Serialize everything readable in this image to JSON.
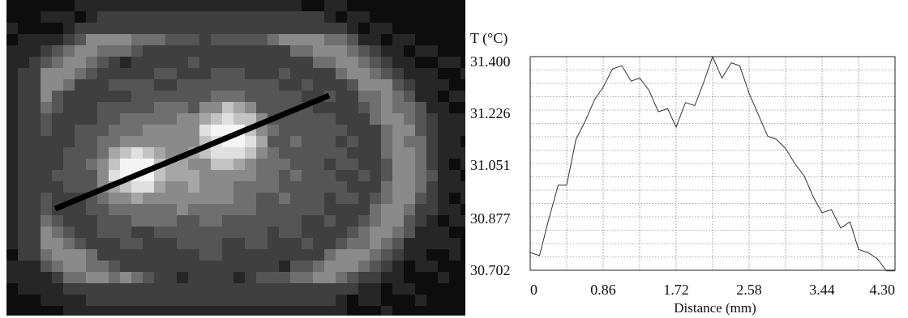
{
  "chart_data": [
    {
      "type": "heatmap",
      "description_colors": {
        "levels": [
          "#0d0d0d",
          "#262626",
          "#3f3f3f",
          "#555555",
          "#6f6f6f",
          "#8a8a8a",
          "#a6a6a6",
          "#c3c3c3",
          "#e0e0e0",
          "#f5f5f5"
        ]
      },
      "profile_line_color": "#000000"
    },
    {
      "type": "line",
      "xlabel": "Distance (mm)",
      "ylabel": "T (°C)",
      "x_ticks": [
        "0",
        "0.86",
        "1.72",
        "2.58",
        "3.44",
        "4.30"
      ],
      "y_ticks": [
        "31.400",
        "31.226",
        "31.051",
        "30.877",
        "30.702"
      ],
      "xlim": [
        0,
        4.3
      ],
      "ylim": [
        30.702,
        31.4
      ],
      "grid": true,
      "series": [
        {
          "x": [
            0.0,
            0.11,
            0.22,
            0.33,
            0.43,
            0.54,
            0.65,
            0.76,
            0.86,
            0.97,
            1.08,
            1.19,
            1.29,
            1.4,
            1.51,
            1.62,
            1.72,
            1.83,
            1.94,
            2.05,
            2.15,
            2.26,
            2.37,
            2.47,
            2.58,
            2.69,
            2.8,
            2.9,
            3.01,
            3.12,
            3.23,
            3.34,
            3.44,
            3.55,
            3.66,
            3.77,
            3.87,
            3.98,
            4.09,
            4.2,
            4.3
          ],
          "y": [
            30.76,
            30.75,
            30.87,
            30.98,
            30.98,
            31.13,
            31.19,
            31.26,
            31.3,
            31.36,
            31.37,
            31.32,
            31.33,
            31.29,
            31.22,
            31.23,
            31.17,
            31.25,
            31.24,
            31.32,
            31.4,
            31.33,
            31.38,
            31.37,
            31.28,
            31.21,
            31.14,
            31.13,
            31.1,
            31.05,
            31.01,
            30.94,
            30.89,
            30.9,
            30.84,
            30.86,
            30.77,
            30.76,
            30.74,
            30.7,
            30.7
          ]
        }
      ]
    }
  ]
}
